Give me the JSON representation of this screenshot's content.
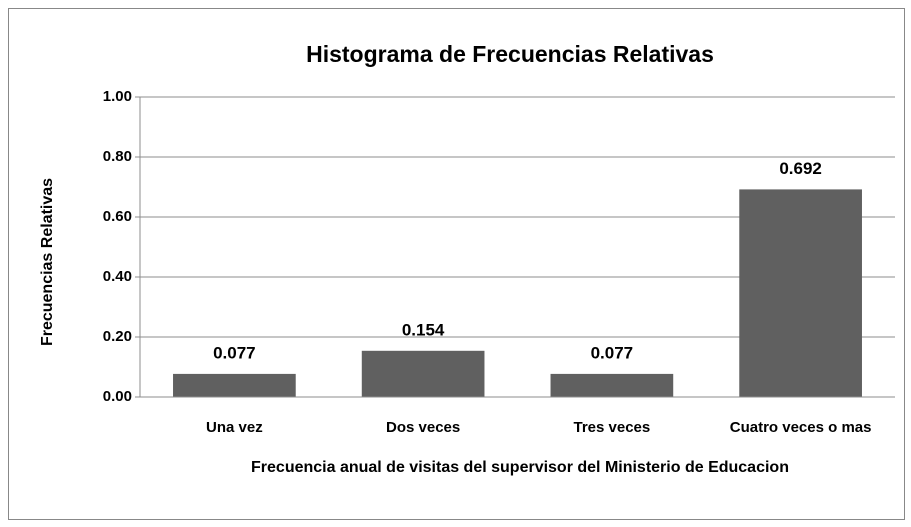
{
  "chart_data": {
    "type": "bar",
    "title": "Histograma de Frecuencias Relativas",
    "x_label": "Frecuencia anual de visitas del supervisor del Ministerio de Educacion",
    "y_label": "Frecuencias Relativas",
    "categories": [
      "Una vez",
      "Dos veces",
      "Tres veces",
      "Cuatro veces o mas"
    ],
    "values": [
      0.077,
      0.154,
      0.077,
      0.692
    ],
    "color": "#606060",
    "ylim": [
      0,
      1
    ],
    "yticks": [
      {
        "value": 0,
        "label": "0.00"
      },
      {
        "value": 0.2,
        "label": "0.20"
      },
      {
        "value": 0.4,
        "label": "0.40"
      },
      {
        "value": 0.6,
        "label": "0.60"
      },
      {
        "value": 0.8,
        "label": "0.80"
      },
      {
        "value": 1,
        "label": "1.00"
      }
    ],
    "grid": true
  }
}
